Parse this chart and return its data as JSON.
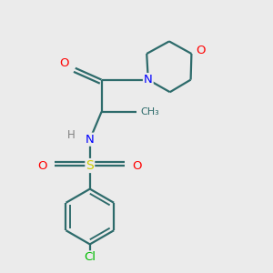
{
  "bg_color": "#ebebeb",
  "bond_color": "#2d6b6b",
  "bond_width": 1.6,
  "atom_colors": {
    "O": "#ff0000",
    "N": "#0000ff",
    "S": "#cccc00",
    "Cl": "#00bb00",
    "H": "#808080",
    "C": "#2d6b6b"
  },
  "font_size": 9
}
